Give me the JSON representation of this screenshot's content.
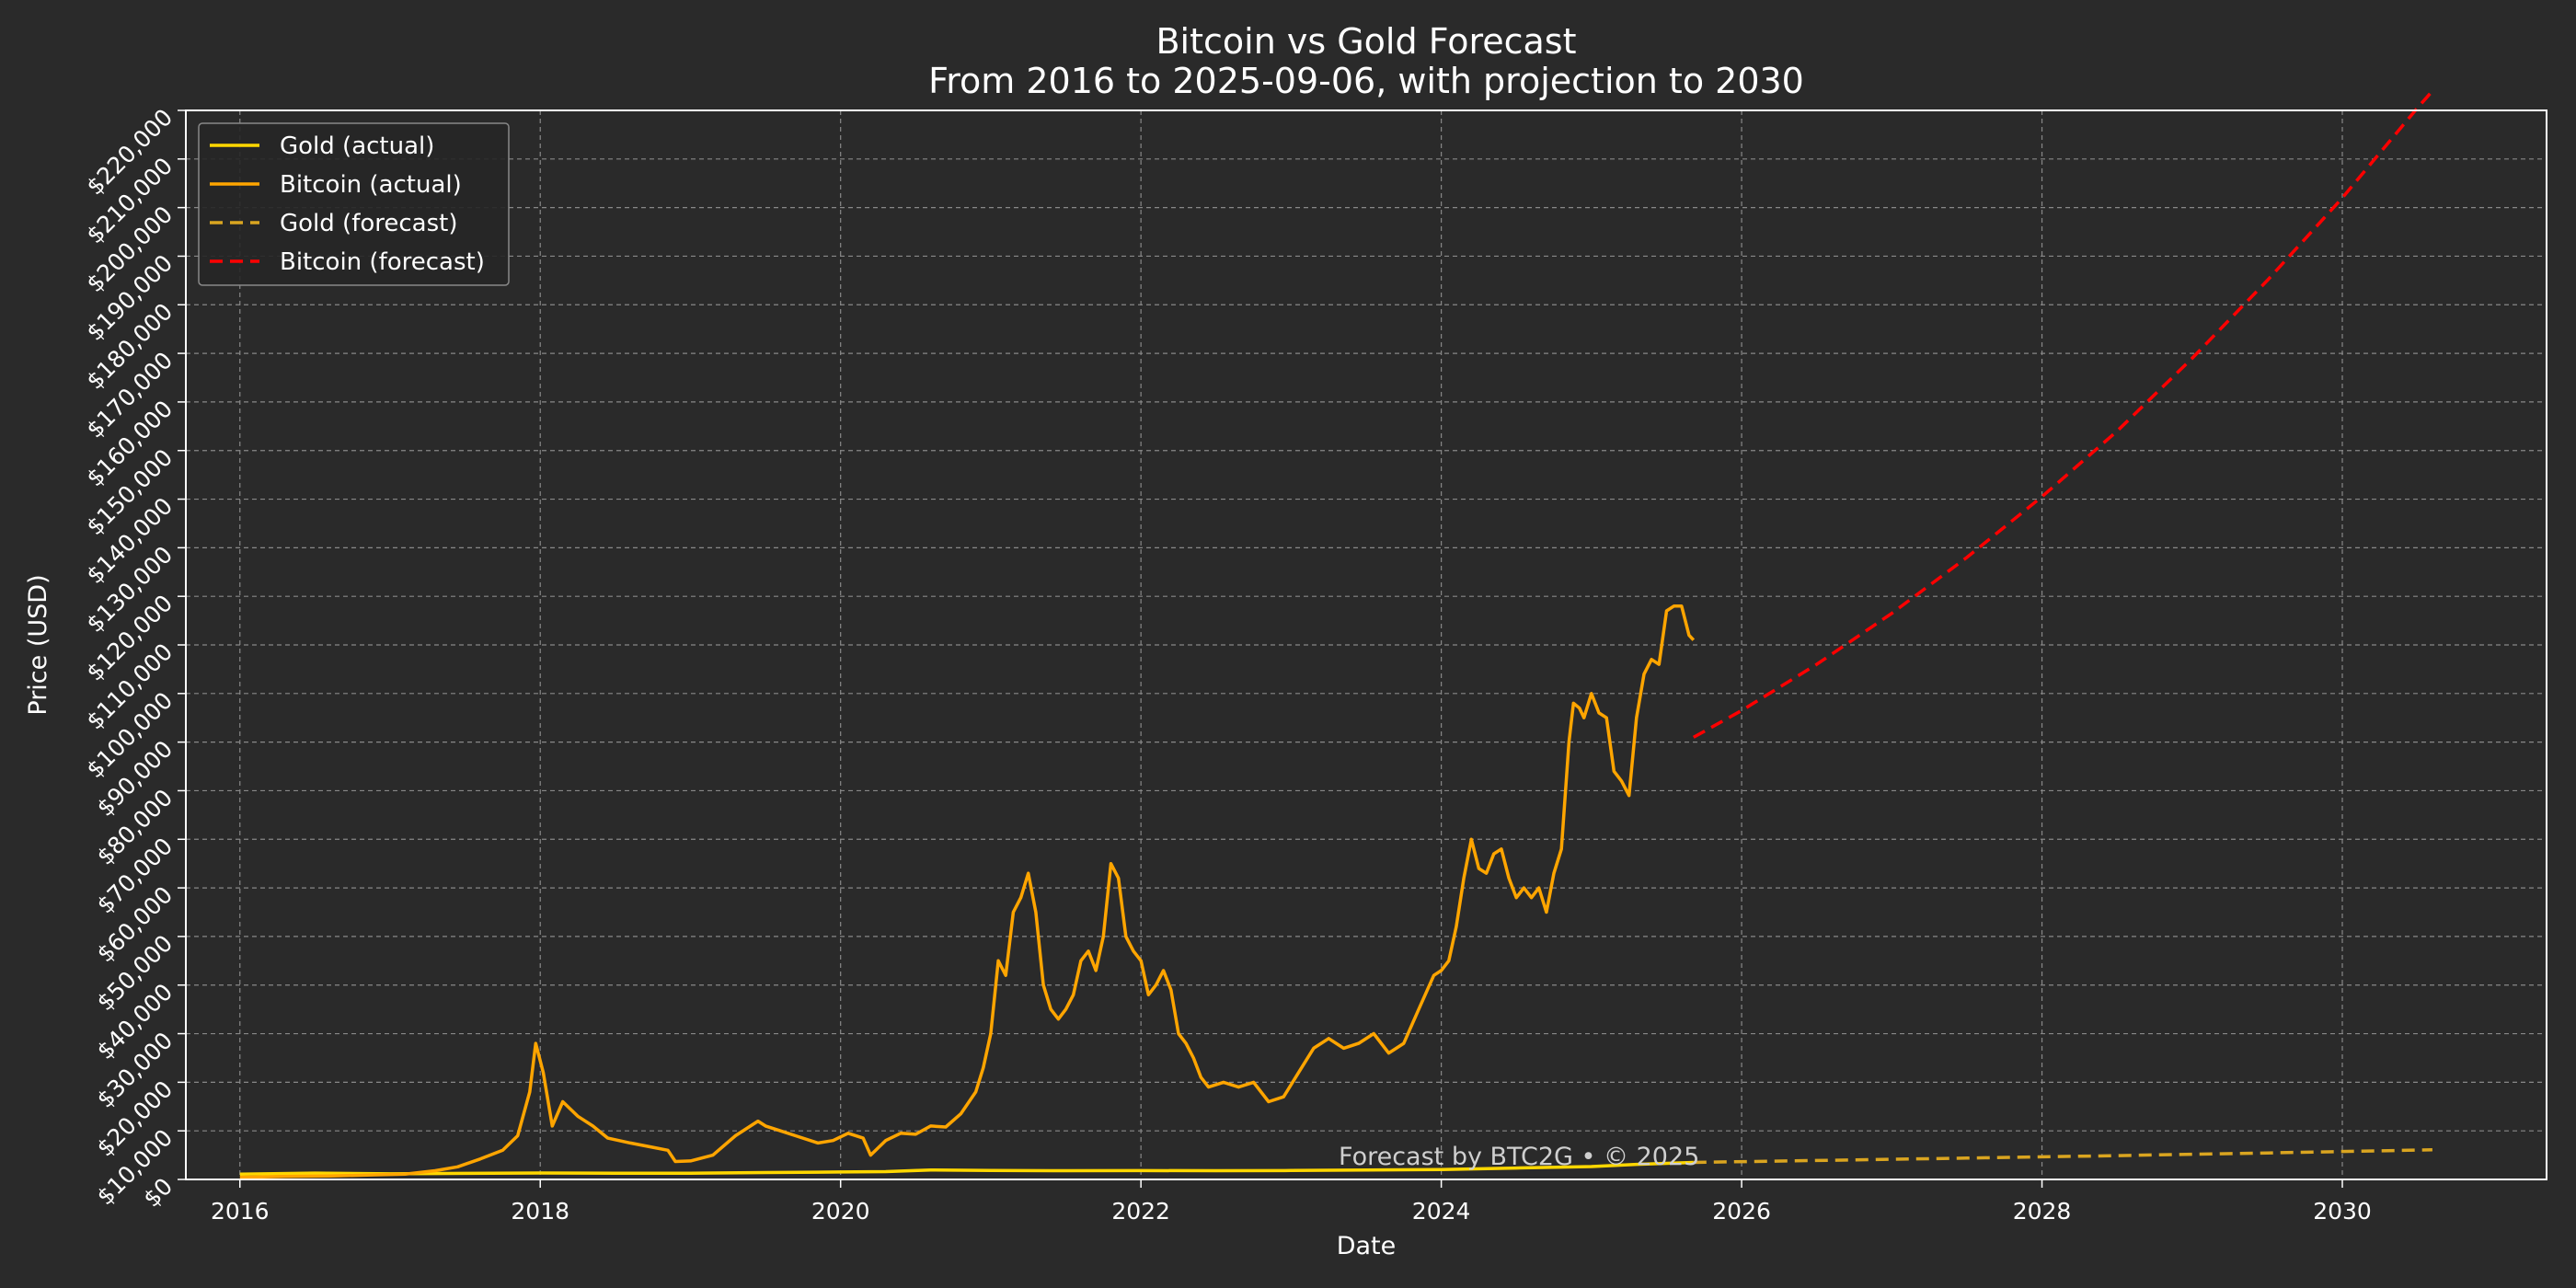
{
  "chart_data": {
    "type": "line",
    "title": "Bitcoin vs Gold Forecast",
    "subtitle": "From 2016 to 2025-09-06, with projection to 2030",
    "xlabel": "Date",
    "ylabel": "Price (USD)",
    "xlim": [
      2015.64,
      2031.36
    ],
    "ylim": [
      0,
      220000
    ],
    "x_ticks": [
      2016,
      2018,
      2020,
      2022,
      2024,
      2026,
      2028,
      2030
    ],
    "x_tick_labels": [
      "2016",
      "2018",
      "2020",
      "2022",
      "2024",
      "2026",
      "2028",
      "2030"
    ],
    "y_ticks": [
      0,
      10000,
      20000,
      30000,
      40000,
      50000,
      60000,
      70000,
      80000,
      90000,
      100000,
      110000,
      120000,
      130000,
      140000,
      150000,
      160000,
      170000,
      180000,
      190000,
      200000,
      210000,
      220000
    ],
    "y_tick_labels": [
      "$0",
      "$10,000",
      "$20,000",
      "$30,000",
      "$40,000",
      "$50,000",
      "$60,000",
      "$70,000",
      "$80,000",
      "$90,000",
      "$100,000",
      "$110,000",
      "$120,000",
      "$130,000",
      "$140,000",
      "$150,000",
      "$160,000",
      "$170,000",
      "$180,000",
      "$190,000",
      "$200,000",
      "$210,000",
      "$220,000"
    ],
    "grid": true,
    "legend_position": "top-left",
    "annotation": "Forecast by BTC2G • © 2025",
    "series": [
      {
        "name": "Gold (actual)",
        "color": "#ffd700",
        "style": "solid",
        "x": [
          2016.0,
          2016.5,
          2017.0,
          2017.5,
          2018.0,
          2018.5,
          2019.0,
          2019.5,
          2020.0,
          2020.3,
          2020.6,
          2021.0,
          2021.5,
          2022.0,
          2022.5,
          2023.0,
          2023.5,
          2024.0,
          2024.5,
          2025.0,
          2025.3,
          2025.68
        ],
        "y": [
          1100,
          1300,
          1150,
          1250,
          1330,
          1260,
          1290,
          1420,
          1530,
          1600,
          1950,
          1850,
          1800,
          1820,
          1800,
          1830,
          1930,
          2050,
          2350,
          2650,
          3100,
          3500
        ]
      },
      {
        "name": "Bitcoin (actual)",
        "color": "#ffa500",
        "style": "solid",
        "x": [
          2016.0,
          2016.3,
          2016.6,
          2016.9,
          2017.1,
          2017.3,
          2017.45,
          2017.6,
          2017.75,
          2017.85,
          2017.93,
          2017.97,
          2018.02,
          2018.08,
          2018.15,
          2018.25,
          2018.35,
          2018.45,
          2018.6,
          2018.75,
          2018.85,
          2018.9,
          2019.0,
          2019.15,
          2019.3,
          2019.45,
          2019.5,
          2019.6,
          2019.7,
          2019.85,
          2019.95,
          2020.05,
          2020.15,
          2020.2,
          2020.3,
          2020.4,
          2020.5,
          2020.6,
          2020.7,
          2020.8,
          2020.9,
          2020.95,
          2021.0,
          2021.05,
          2021.1,
          2021.15,
          2021.2,
          2021.25,
          2021.3,
          2021.35,
          2021.4,
          2021.45,
          2021.5,
          2021.55,
          2021.6,
          2021.65,
          2021.7,
          2021.75,
          2021.8,
          2021.85,
          2021.9,
          2021.95,
          2022.0,
          2022.05,
          2022.1,
          2022.15,
          2022.2,
          2022.25,
          2022.3,
          2022.35,
          2022.4,
          2022.45,
          2022.55,
          2022.65,
          2022.75,
          2022.85,
          2022.95,
          2023.05,
          2023.15,
          2023.25,
          2023.35,
          2023.45,
          2023.55,
          2023.65,
          2023.75,
          2023.85,
          2023.95,
          2024.0,
          2024.05,
          2024.1,
          2024.15,
          2024.2,
          2024.25,
          2024.3,
          2024.35,
          2024.4,
          2024.45,
          2024.5,
          2024.55,
          2024.6,
          2024.65,
          2024.7,
          2024.75,
          2024.8,
          2024.85,
          2024.88,
          2024.92,
          2024.95,
          2025.0,
          2025.05,
          2025.1,
          2025.15,
          2025.2,
          2025.25,
          2025.3,
          2025.35,
          2025.4,
          2025.45,
          2025.5,
          2025.55,
          2025.6,
          2025.65,
          2025.68
        ],
        "y": [
          430,
          600,
          700,
          950,
          1100,
          1800,
          2600,
          4200,
          6000,
          9000,
          18000,
          28000,
          22000,
          11000,
          16000,
          13000,
          11000,
          8500,
          7500,
          6600,
          6000,
          3700,
          3800,
          5000,
          9000,
          12000,
          11000,
          10000,
          9000,
          7500,
          8000,
          9500,
          8500,
          5000,
          8000,
          9500,
          9300,
          11000,
          10800,
          13500,
          18000,
          23000,
          30000,
          45000,
          42000,
          55000,
          58000,
          63000,
          55000,
          40000,
          35000,
          33000,
          35000,
          38000,
          45000,
          47000,
          43000,
          50000,
          65000,
          62000,
          50000,
          47000,
          45000,
          38000,
          40000,
          43000,
          39000,
          30000,
          28000,
          25000,
          21000,
          19000,
          20000,
          19000,
          20000,
          16000,
          17000,
          22000,
          27000,
          29000,
          27000,
          28000,
          30000,
          26000,
          28000,
          35000,
          42000,
          43000,
          45000,
          52000,
          62000,
          70000,
          64000,
          63000,
          67000,
          68000,
          62000,
          58000,
          60000,
          58000,
          60000,
          55000,
          63000,
          68000,
          90000,
          98000,
          97000,
          95000,
          100000,
          96000,
          95000,
          84000,
          82000,
          79000,
          95000,
          104000,
          107000,
          106000,
          117000,
          118000,
          118000,
          112000,
          111000
        ]
      },
      {
        "name": "Gold (forecast)",
        "color": "#daa520",
        "style": "dashed",
        "x": [
          2025.68,
          2026.5,
          2027.5,
          2028.5,
          2029.5,
          2030.6
        ],
        "y": [
          3500,
          3900,
          4400,
          4900,
          5450,
          6100
        ]
      },
      {
        "name": "Bitcoin (forecast)",
        "color": "#ff0000",
        "style": "dashed",
        "x": [
          2025.68,
          2026.0,
          2026.5,
          2027.0,
          2027.5,
          2028.0,
          2028.5,
          2029.0,
          2029.5,
          2030.0,
          2030.5,
          2030.6
        ],
        "y": [
          91000,
          96500,
          106000,
          116500,
          128000,
          140500,
          154000,
          169000,
          185000,
          202000,
          220500,
          224000
        ]
      }
    ]
  }
}
